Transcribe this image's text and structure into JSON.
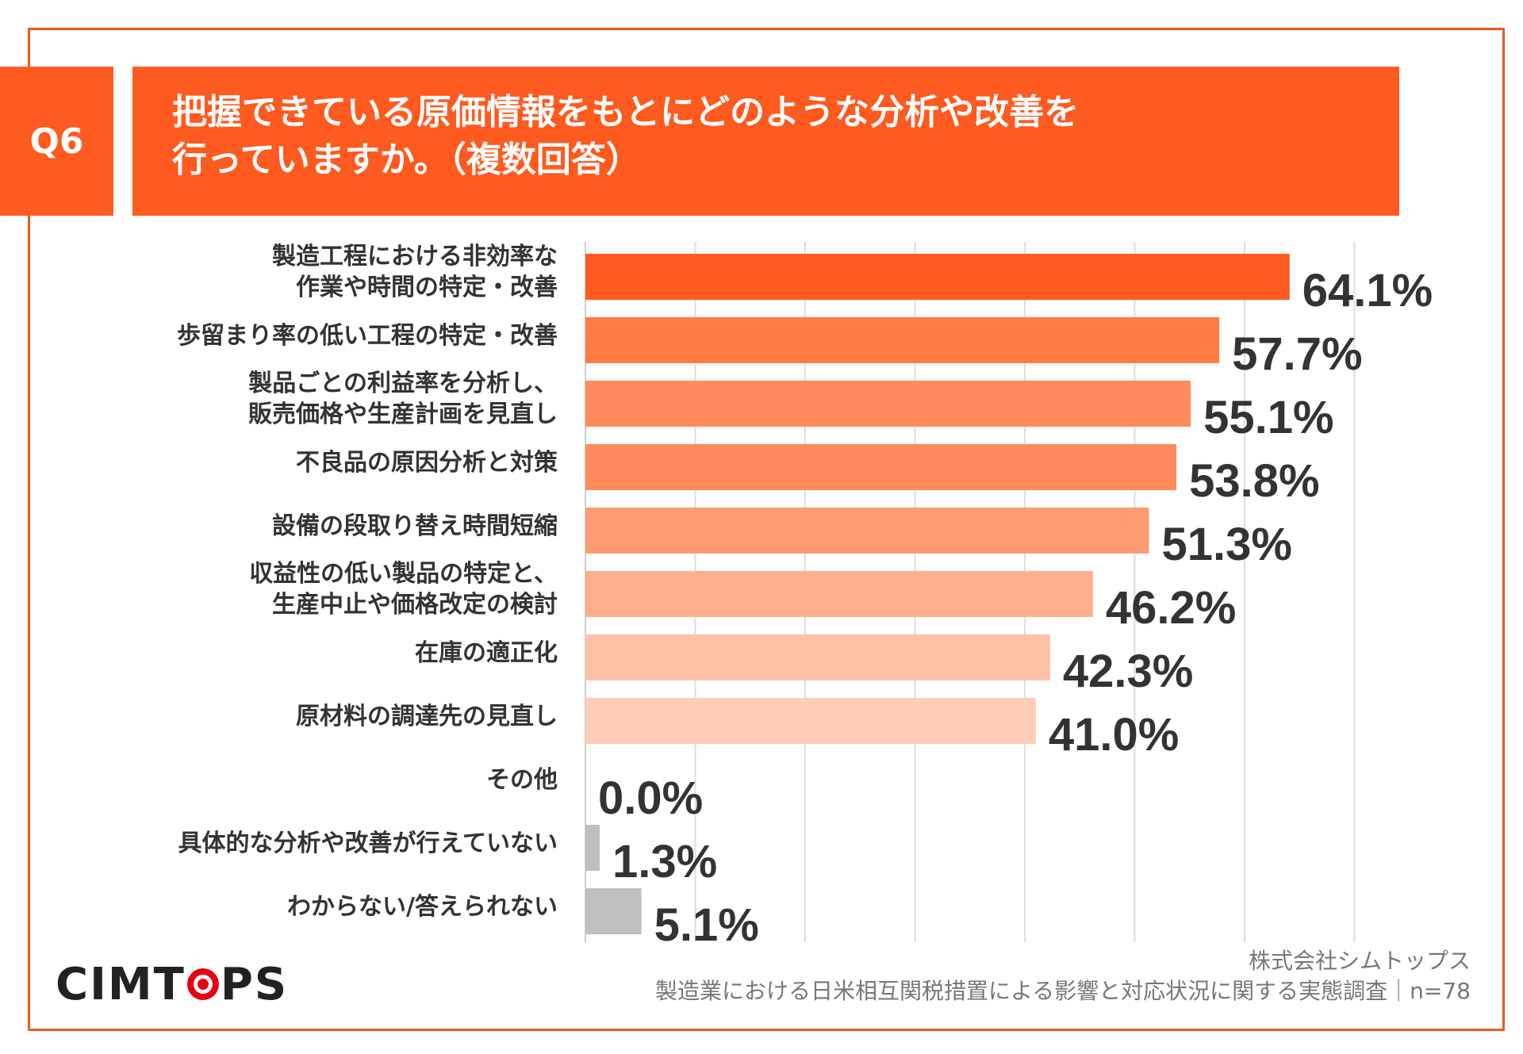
{
  "question": {
    "badge": "Q6"
  },
  "chart_data": {
    "type": "bar",
    "orientation": "horizontal",
    "title_lines": [
      "把握できている原価情報をもとにどのような分析や改善を",
      "行っていますか。（複数回答）"
    ],
    "categories": [
      [
        "製造工程における非効率な",
        "作業や時間の特定・改善"
      ],
      [
        "歩留まり率の低い工程の特定・改善"
      ],
      [
        "製品ごとの利益率を分析し、",
        "販売価格や生産計画を見直し"
      ],
      [
        "不良品の原因分析と対策"
      ],
      [
        "設備の段取り替え時間短縮"
      ],
      [
        "収益性の低い製品の特定と、",
        "生産中止や価格改定の検討"
      ],
      [
        "在庫の適正化"
      ],
      [
        "原材料の調達先の見直し"
      ],
      [
        "その他"
      ],
      [
        "具体的な分析や改善が行えていない"
      ],
      [
        "わからない/答えられない"
      ]
    ],
    "values": [
      64.1,
      57.7,
      55.1,
      53.8,
      51.3,
      46.2,
      42.3,
      41.0,
      0.0,
      1.3,
      5.1
    ],
    "value_labels": [
      "64.1%",
      "57.7%",
      "55.1%",
      "53.8%",
      "51.3%",
      "46.2%",
      "42.3%",
      "41.0%",
      "0.0%",
      "1.3%",
      "5.1%"
    ],
    "bar_colors": [
      "#ff5a1f",
      "#ff7b46",
      "#ff8a5b",
      "#ff8a5b",
      "#ff9c72",
      "#ffae8d",
      "#ffc2a7",
      "#ffcdb7",
      "#bfbfbf",
      "#bfbfbf",
      "#bfbfbf"
    ],
    "xlim": [
      0,
      70
    ],
    "grid": true,
    "unit": "%"
  },
  "footer": {
    "company": "株式会社シムトップス",
    "survey": "製造業における日米相互関税措置による影響と対応状況に関する実態調査｜n=78",
    "logo_text": "CIMTOPS"
  },
  "colors": {
    "accent": "#ff5a1f",
    "frame": "#f05a1e"
  }
}
